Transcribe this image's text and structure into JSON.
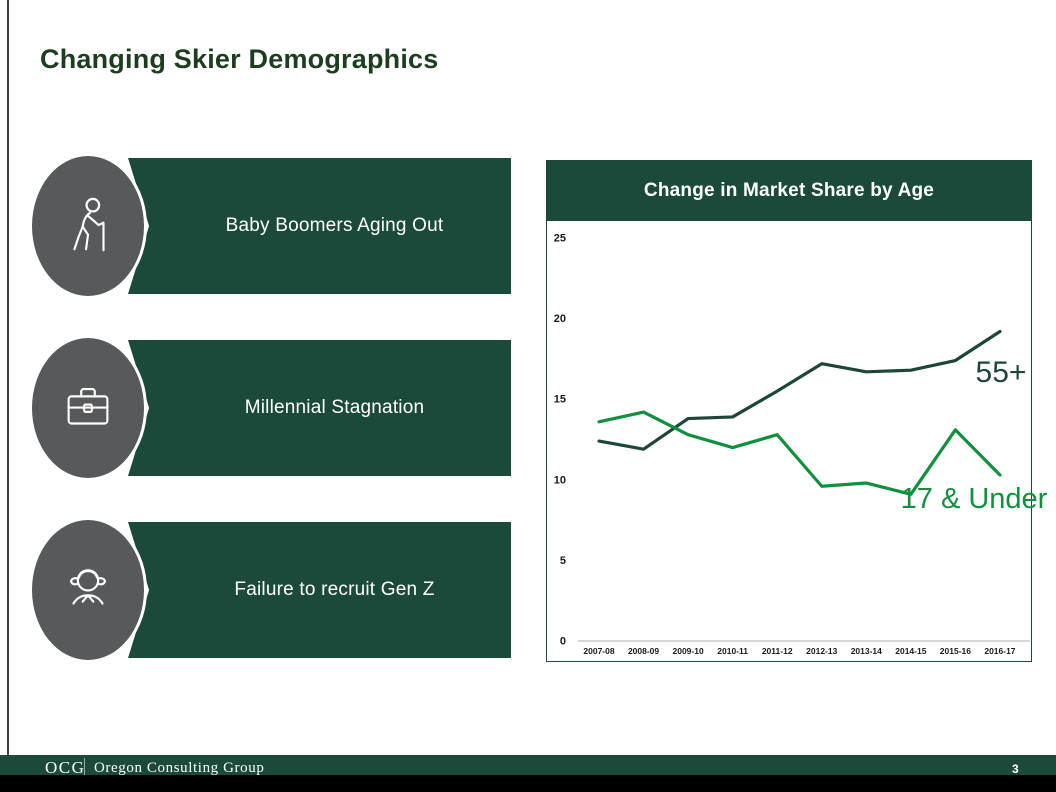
{
  "slide": {
    "title": "Changing Skier Demographics"
  },
  "banners": [
    {
      "label": "Baby Boomers Aging Out",
      "icon": "elderly-person-icon"
    },
    {
      "label": "Millennial Stagnation",
      "icon": "briefcase-icon"
    },
    {
      "label": "Failure to recruit Gen Z",
      "icon": "girl-icon"
    }
  ],
  "chart_data": {
    "type": "line",
    "title": "Change in Market Share by Age",
    "categories": [
      "2007-08",
      "2008-09",
      "2009-10",
      "2010-11",
      "2011-12",
      "2012-13",
      "2013-14",
      "2014-15",
      "2015-16",
      "2016-17"
    ],
    "series": [
      {
        "name": "55+",
        "color": "#1d4539",
        "values": [
          12.4,
          11.9,
          13.8,
          13.9,
          15.5,
          17.2,
          16.7,
          16.8,
          17.4,
          19.2
        ]
      },
      {
        "name": "17 & Under",
        "color": "#108f3e",
        "values": [
          13.6,
          14.2,
          12.8,
          12.0,
          12.8,
          9.6,
          9.8,
          9.1,
          13.1,
          10.3
        ]
      }
    ],
    "xlabel": "",
    "ylabel": "",
    "ylim": [
      0,
      25
    ],
    "yticks": [
      0,
      5,
      10,
      15,
      20,
      25
    ],
    "grid": false,
    "legend": "labels-next-to-lines",
    "axis_color": "#c9c9c9",
    "tick_color": "#1a1a1a"
  },
  "footer": {
    "logo": "OCG",
    "company": "Oregon Consulting Group",
    "page_number": "3"
  },
  "colors": {
    "accent_green": "#1b4a3b",
    "title_green": "#1d3d20",
    "circle_gray": "#58595b"
  }
}
